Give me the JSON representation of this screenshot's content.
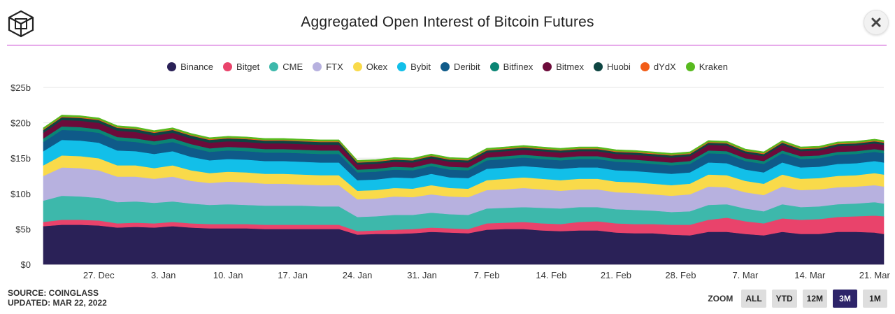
{
  "title": "Aggregated Open Interest of Bitcoin Futures",
  "accent_color": "#c83fd2",
  "footer": {
    "source": "SOURCE: COINGLASS",
    "updated": "UPDATED: MAR 22, 2022"
  },
  "zoom": {
    "label": "ZOOM",
    "buttons": [
      "ALL",
      "YTD",
      "12M",
      "3M",
      "1M"
    ],
    "active": "3M"
  },
  "icons": {
    "logo": "cube-logo-icon",
    "close": "close-icon"
  },
  "chart_data": {
    "type": "area",
    "stacked": true,
    "title": "Aggregated Open Interest of Bitcoin Futures",
    "legend_position": "top-center",
    "grid": true,
    "ylim": [
      0,
      25
    ],
    "y_ticks": [
      "$0",
      "$5b",
      "$10b",
      "$15b",
      "$20b",
      "$25b"
    ],
    "y_unit": "billion USD",
    "x_start": "2021-12-21",
    "x_end": "2022-03-22",
    "x_ticks": [
      {
        "date": "2021-12-27",
        "label": "27. Dec"
      },
      {
        "date": "2022-01-03",
        "label": "3. Jan"
      },
      {
        "date": "2022-01-10",
        "label": "10. Jan"
      },
      {
        "date": "2022-01-17",
        "label": "17. Jan"
      },
      {
        "date": "2022-01-24",
        "label": "24. Jan"
      },
      {
        "date": "2022-01-31",
        "label": "31. Jan"
      },
      {
        "date": "2022-02-07",
        "label": "7. Feb"
      },
      {
        "date": "2022-02-14",
        "label": "14. Feb"
      },
      {
        "date": "2022-02-21",
        "label": "21. Feb"
      },
      {
        "date": "2022-02-28",
        "label": "28. Feb"
      },
      {
        "date": "2022-03-07",
        "label": "7. Mar"
      },
      {
        "date": "2022-03-14",
        "label": "14. Mar"
      },
      {
        "date": "2022-03-21",
        "label": "21. Mar"
      }
    ],
    "x": [
      "2021-12-21",
      "2021-12-23",
      "2021-12-25",
      "2021-12-27",
      "2021-12-29",
      "2021-12-31",
      "2022-01-02",
      "2022-01-04",
      "2022-01-06",
      "2022-01-08",
      "2022-01-10",
      "2022-01-12",
      "2022-01-14",
      "2022-01-16",
      "2022-01-18",
      "2022-01-20",
      "2022-01-22",
      "2022-01-24",
      "2022-01-26",
      "2022-01-28",
      "2022-01-30",
      "2022-02-01",
      "2022-02-03",
      "2022-02-05",
      "2022-02-07",
      "2022-02-09",
      "2022-02-11",
      "2022-02-13",
      "2022-02-15",
      "2022-02-17",
      "2022-02-19",
      "2022-02-21",
      "2022-02-23",
      "2022-02-25",
      "2022-02-27",
      "2022-03-01",
      "2022-03-03",
      "2022-03-05",
      "2022-03-07",
      "2022-03-09",
      "2022-03-11",
      "2022-03-13",
      "2022-03-15",
      "2022-03-17",
      "2022-03-19",
      "2022-03-21",
      "2022-03-22"
    ],
    "series": [
      {
        "name": "Binance",
        "color": "#2a2157",
        "values": [
          5.4,
          5.6,
          5.6,
          5.5,
          5.2,
          5.3,
          5.2,
          5.4,
          5.2,
          5.1,
          5.1,
          5.1,
          5.0,
          5.0,
          5.0,
          5.0,
          5.0,
          4.2,
          4.3,
          4.3,
          4.4,
          4.6,
          4.5,
          4.4,
          4.9,
          5.0,
          5.0,
          4.8,
          4.7,
          4.8,
          4.8,
          4.5,
          4.4,
          4.4,
          4.2,
          4.1,
          4.6,
          4.6,
          4.3,
          4.1,
          4.6,
          4.3,
          4.3,
          4.6,
          4.6,
          4.5,
          4.3
        ]
      },
      {
        "name": "Bitget",
        "color": "#e9436b",
        "values": [
          0.6,
          0.7,
          0.7,
          0.7,
          0.6,
          0.6,
          0.6,
          0.6,
          0.6,
          0.6,
          0.6,
          0.6,
          0.6,
          0.6,
          0.6,
          0.6,
          0.6,
          0.5,
          0.5,
          0.6,
          0.6,
          0.6,
          0.6,
          0.6,
          0.9,
          0.9,
          1.0,
          1.0,
          1.0,
          1.2,
          1.3,
          1.3,
          1.3,
          1.3,
          1.4,
          1.5,
          1.7,
          2.0,
          1.8,
          1.7,
          1.9,
          2.0,
          2.1,
          2.1,
          2.2,
          2.4,
          2.5
        ]
      },
      {
        "name": "CME",
        "color": "#3db8ab",
        "values": [
          3.0,
          3.4,
          3.3,
          3.2,
          3.0,
          3.0,
          2.9,
          2.9,
          2.8,
          2.7,
          2.8,
          2.7,
          2.7,
          2.7,
          2.7,
          2.6,
          2.6,
          2.0,
          2.0,
          2.1,
          2.0,
          2.1,
          2.0,
          2.0,
          2.1,
          2.1,
          2.1,
          2.2,
          2.2,
          2.1,
          2.0,
          2.0,
          2.0,
          1.9,
          1.8,
          1.9,
          2.1,
          1.9,
          1.8,
          1.7,
          2.0,
          1.8,
          1.8,
          1.8,
          1.8,
          1.9,
          1.8
        ]
      },
      {
        "name": "FTX",
        "color": "#b7b1df",
        "values": [
          3.5,
          4.0,
          4.0,
          3.9,
          3.6,
          3.5,
          3.4,
          3.5,
          3.2,
          3.1,
          3.2,
          3.2,
          3.1,
          3.1,
          3.0,
          3.0,
          3.0,
          2.5,
          2.5,
          2.6,
          2.5,
          2.6,
          2.5,
          2.5,
          2.6,
          2.6,
          2.7,
          2.6,
          2.5,
          2.5,
          2.5,
          2.4,
          2.4,
          2.3,
          2.3,
          2.4,
          2.6,
          2.4,
          2.3,
          2.3,
          2.5,
          2.4,
          2.4,
          2.4,
          2.4,
          2.4,
          2.4
        ]
      },
      {
        "name": "Okex",
        "color": "#f9da4a",
        "values": [
          1.5,
          1.7,
          1.7,
          1.7,
          1.6,
          1.6,
          1.5,
          1.6,
          1.5,
          1.4,
          1.4,
          1.4,
          1.4,
          1.4,
          1.4,
          1.4,
          1.4,
          1.2,
          1.2,
          1.2,
          1.2,
          1.3,
          1.2,
          1.2,
          1.4,
          1.5,
          1.5,
          1.5,
          1.5,
          1.5,
          1.5,
          1.5,
          1.5,
          1.5,
          1.5,
          1.5,
          1.7,
          1.7,
          1.6,
          1.6,
          1.7,
          1.6,
          1.6,
          1.6,
          1.6,
          1.7,
          1.7
        ]
      },
      {
        "name": "Bybit",
        "color": "#12bfe9",
        "values": [
          2.0,
          2.2,
          2.2,
          2.2,
          2.1,
          2.0,
          2.0,
          2.0,
          1.9,
          1.8,
          1.8,
          1.8,
          1.8,
          1.8,
          1.8,
          1.8,
          1.8,
          1.5,
          1.5,
          1.5,
          1.5,
          1.6,
          1.5,
          1.5,
          1.6,
          1.6,
          1.6,
          1.6,
          1.6,
          1.6,
          1.6,
          1.6,
          1.6,
          1.6,
          1.6,
          1.6,
          1.7,
          1.7,
          1.6,
          1.6,
          1.7,
          1.6,
          1.6,
          1.7,
          1.7,
          1.7,
          1.7
        ]
      },
      {
        "name": "Deribit",
        "color": "#0f5a89",
        "values": [
          1.3,
          1.4,
          1.4,
          1.4,
          1.4,
          1.3,
          1.3,
          1.3,
          1.3,
          1.2,
          1.2,
          1.2,
          1.2,
          1.2,
          1.2,
          1.2,
          1.2,
          1.1,
          1.1,
          1.1,
          1.1,
          1.1,
          1.1,
          1.1,
          1.2,
          1.2,
          1.2,
          1.2,
          1.2,
          1.2,
          1.2,
          1.2,
          1.2,
          1.2,
          1.2,
          1.2,
          1.3,
          1.3,
          1.2,
          1.2,
          1.3,
          1.2,
          1.2,
          1.3,
          1.3,
          1.3,
          1.3
        ]
      },
      {
        "name": "Bitfinex",
        "color": "#0a8574",
        "values": [
          0.5,
          0.5,
          0.5,
          0.5,
          0.5,
          0.5,
          0.5,
          0.5,
          0.5,
          0.5,
          0.5,
          0.5,
          0.5,
          0.5,
          0.5,
          0.5,
          0.5,
          0.4,
          0.4,
          0.4,
          0.4,
          0.4,
          0.4,
          0.4,
          0.4,
          0.4,
          0.4,
          0.4,
          0.4,
          0.4,
          0.4,
          0.4,
          0.4,
          0.4,
          0.4,
          0.4,
          0.4,
          0.4,
          0.4,
          0.4,
          0.4,
          0.4,
          0.4,
          0.4,
          0.4,
          0.4,
          0.4
        ]
      },
      {
        "name": "Bitmex",
        "color": "#6c0b3a",
        "values": [
          0.8,
          0.9,
          0.9,
          0.9,
          0.9,
          0.9,
          0.8,
          0.8,
          0.8,
          0.8,
          0.8,
          0.8,
          0.8,
          0.8,
          0.8,
          0.8,
          0.8,
          0.7,
          0.7,
          0.7,
          0.7,
          0.7,
          0.7,
          0.7,
          0.7,
          0.7,
          0.7,
          0.7,
          0.7,
          0.7,
          0.7,
          0.7,
          0.7,
          0.7,
          0.7,
          0.7,
          0.8,
          0.8,
          0.7,
          0.7,
          0.8,
          0.7,
          0.7,
          0.8,
          0.8,
          0.8,
          0.8
        ]
      },
      {
        "name": "Huobi",
        "color": "#0e4542",
        "values": [
          0.4,
          0.4,
          0.4,
          0.4,
          0.4,
          0.4,
          0.4,
          0.4,
          0.4,
          0.4,
          0.4,
          0.4,
          0.4,
          0.4,
          0.4,
          0.4,
          0.4,
          0.3,
          0.3,
          0.3,
          0.3,
          0.3,
          0.3,
          0.3,
          0.3,
          0.3,
          0.3,
          0.3,
          0.3,
          0.3,
          0.3,
          0.3,
          0.3,
          0.3,
          0.3,
          0.3,
          0.3,
          0.3,
          0.3,
          0.3,
          0.3,
          0.3,
          0.3,
          0.3,
          0.3,
          0.3,
          0.3
        ]
      },
      {
        "name": "dYdX",
        "color": "#f25d18",
        "values": [
          0.1,
          0.1,
          0.1,
          0.1,
          0.1,
          0.1,
          0.1,
          0.1,
          0.1,
          0.1,
          0.1,
          0.1,
          0.1,
          0.1,
          0.1,
          0.1,
          0.1,
          0.1,
          0.1,
          0.1,
          0.1,
          0.1,
          0.1,
          0.1,
          0.1,
          0.1,
          0.1,
          0.1,
          0.1,
          0.1,
          0.1,
          0.1,
          0.1,
          0.1,
          0.1,
          0.1,
          0.1,
          0.1,
          0.1,
          0.1,
          0.1,
          0.1,
          0.1,
          0.1,
          0.1,
          0.1,
          0.1
        ]
      },
      {
        "name": "Kraken",
        "color": "#58ba1f",
        "values": [
          0.2,
          0.2,
          0.2,
          0.2,
          0.2,
          0.2,
          0.2,
          0.2,
          0.2,
          0.2,
          0.2,
          0.2,
          0.2,
          0.2,
          0.2,
          0.2,
          0.2,
          0.2,
          0.2,
          0.2,
          0.2,
          0.2,
          0.2,
          0.2,
          0.2,
          0.2,
          0.2,
          0.2,
          0.2,
          0.2,
          0.2,
          0.2,
          0.2,
          0.2,
          0.2,
          0.2,
          0.2,
          0.2,
          0.2,
          0.2,
          0.2,
          0.2,
          0.2,
          0.2,
          0.2,
          0.2,
          0.2
        ]
      }
    ]
  }
}
